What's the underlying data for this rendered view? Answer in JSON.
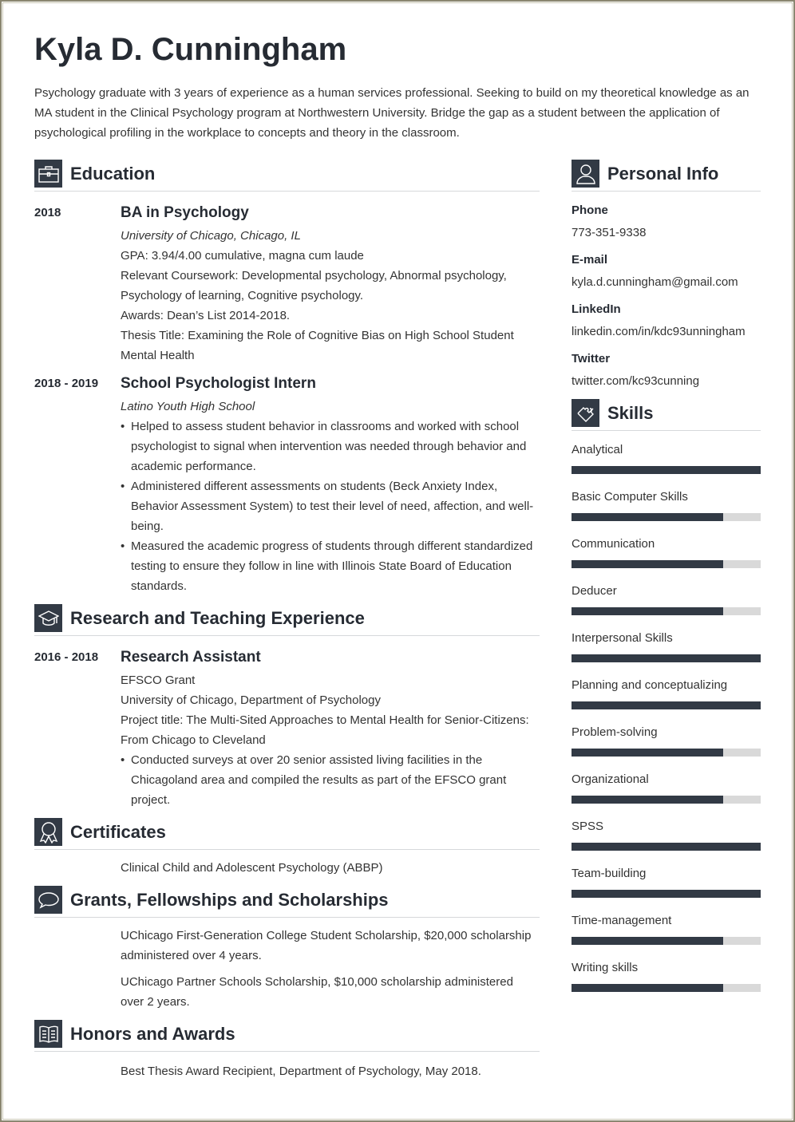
{
  "name": "Kyla D. Cunningham",
  "summary": "Psychology graduate with 3 years of experience as a human services professional. Seeking to build on my theoretical knowledge as an MA student in the Clinical Psychology program at Northwestern University. Bridge the gap as a student between the application of psychological profiling in the workplace to concepts and theory in the classroom.",
  "colors": {
    "accent": "#323a45",
    "bar_empty": "#d9d9d9"
  },
  "education": {
    "title": "Education",
    "icon": "briefcase-icon",
    "entries": [
      {
        "date": "2018",
        "title": "BA in Psychology",
        "subtitle": "University of Chicago, Chicago, IL",
        "lines": [
          "GPA: 3.94/4.00 cumulative, magna cum laude",
          "Relevant Coursework: Developmental psychology, Abnormal psychology, Psychology of learning, Cognitive psychology.",
          "Awards: Dean’s List 2014-2018.",
          "Thesis Title: Examining the Role of Cognitive Bias on High School Student Mental Health"
        ]
      },
      {
        "date": "2018 - 2019",
        "title": "School Psychologist Intern",
        "subtitle": "Latino Youth High School",
        "bullets": [
          "Helped to assess student behavior in classrooms and worked with school psychologist to signal when intervention was needed through behavior and academic performance.",
          "Administered different assessments on students (Beck Anxiety Index, Behavior Assessment System) to test their level of need, affection, and well-being.",
          "Measured the academic progress of students through different standardized testing to ensure they follow in line with Illinois State Board of Education standards."
        ]
      }
    ]
  },
  "research": {
    "title": "Research and Teaching Experience",
    "icon": "graduation-cap-icon",
    "entry": {
      "date": "2016 - 2018",
      "title": "Research Assistant",
      "lines": [
        "EFSCO Grant",
        "University of Chicago, Department of Psychology",
        "Project title: The Multi-Sited Approaches to Mental Health for Senior-Citizens: From Chicago to Cleveland"
      ],
      "bullets": [
        "Conducted surveys at over 20 senior assisted living facilities in the Chicagoland area and compiled the results as part of the EFSCO grant project."
      ]
    }
  },
  "certificates": {
    "title": "Certificates",
    "icon": "award-ribbon-icon",
    "items": [
      "Clinical Child and Adolescent Psychology (ABBP)"
    ]
  },
  "grants": {
    "title": "Grants, Fellowships and Scholarships",
    "icon": "speech-bubble-icon",
    "items": [
      "UChicago First-Generation College Student Scholarship, $20,000 scholarship administered over 4 years.",
      "UChicago Partner Schools Scholarship, $10,000 scholarship administered over 2 years."
    ]
  },
  "honors": {
    "title": "Honors and Awards",
    "icon": "book-icon",
    "items": [
      "Best Thesis Award Recipient, Department of Psychology, May 2018."
    ]
  },
  "personal": {
    "title": "Personal Info",
    "icon": "user-icon",
    "fields": [
      {
        "label": "Phone",
        "value": "773-351-9338"
      },
      {
        "label": "E-mail",
        "value": "kyla.d.cunningham@gmail.com"
      },
      {
        "label": "LinkedIn",
        "value": "linkedin.com/in/kdc93unningham"
      },
      {
        "label": "Twitter",
        "value": "twitter.com/kc93cunning"
      }
    ]
  },
  "skills": {
    "title": "Skills",
    "icon": "puzzle-icon",
    "items": [
      {
        "name": "Analytical",
        "level": 1.0
      },
      {
        "name": "Basic Computer Skills",
        "level": 0.8
      },
      {
        "name": "Communication",
        "level": 0.8
      },
      {
        "name": "Deducer",
        "level": 0.8
      },
      {
        "name": "Interpersonal Skills",
        "level": 1.0
      },
      {
        "name": "Planning and conceptualizing",
        "level": 1.0
      },
      {
        "name": "Problem-solving",
        "level": 0.8
      },
      {
        "name": "Organizational",
        "level": 0.8
      },
      {
        "name": "SPSS",
        "level": 1.0
      },
      {
        "name": "Team-building",
        "level": 1.0
      },
      {
        "name": "Time-management",
        "level": 0.8
      },
      {
        "name": "Writing skills",
        "level": 0.8
      }
    ]
  }
}
